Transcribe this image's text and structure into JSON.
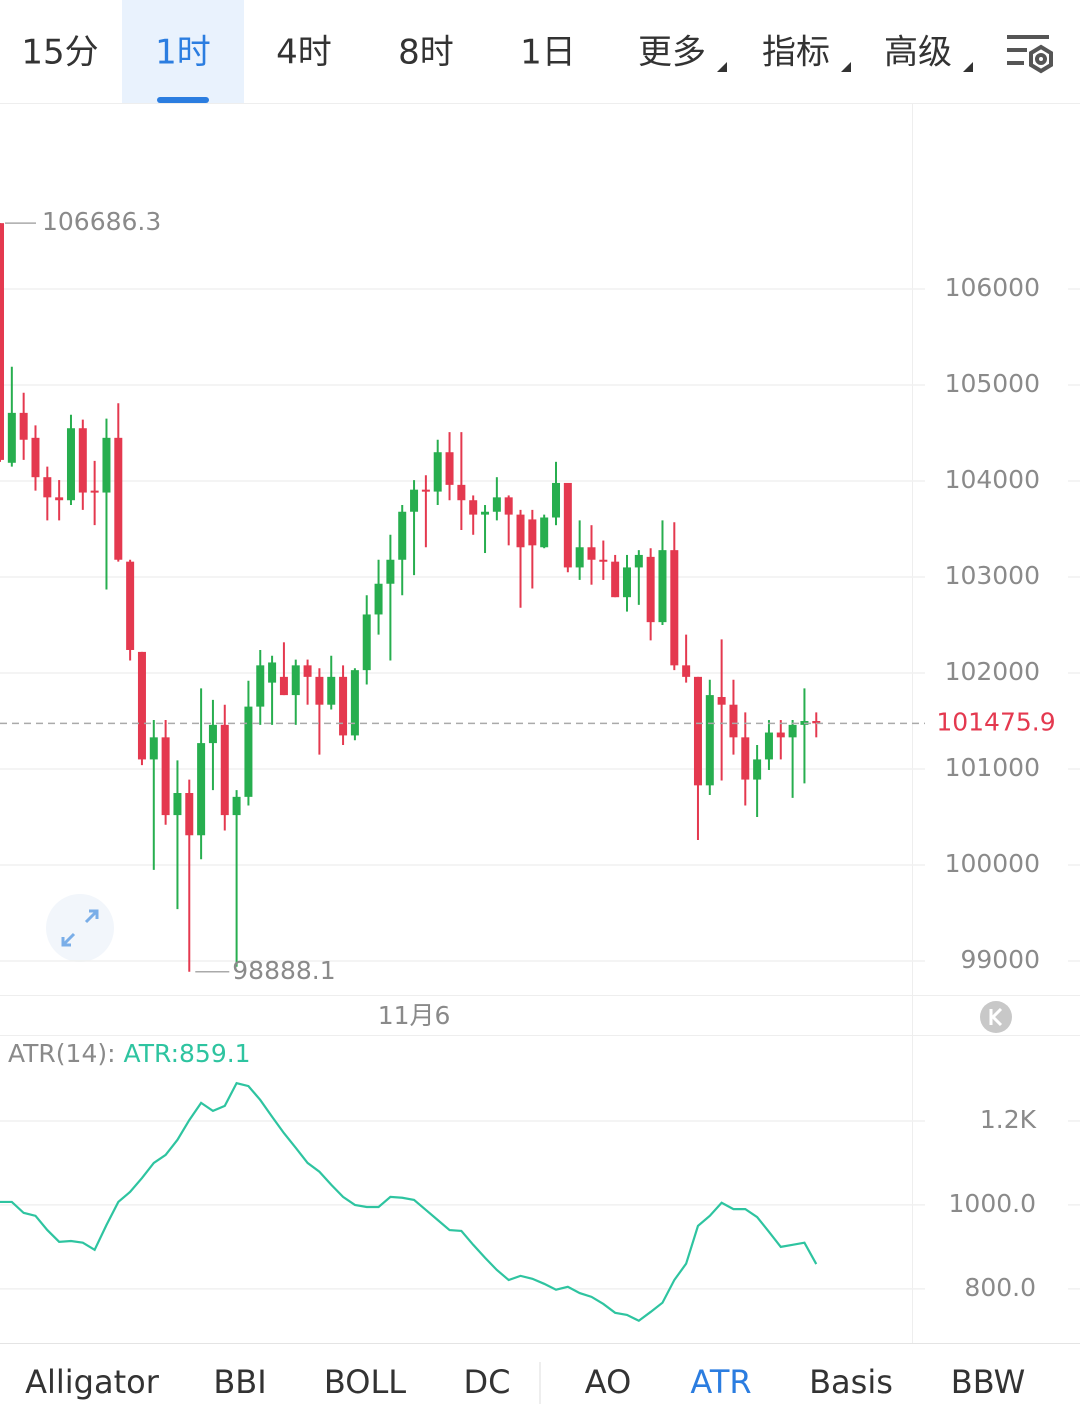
{
  "tabs": {
    "items": [
      "15分",
      "1时",
      "4时",
      "8时",
      "1日",
      "更多",
      "指标",
      "高级"
    ],
    "active": 1
  },
  "chart_data": [
    {
      "type": "candlestick",
      "categories": [
        null,
        null,
        null,
        null,
        null,
        null,
        null,
        null,
        null,
        null,
        null,
        null,
        null,
        null,
        null,
        null,
        null,
        null,
        null,
        null,
        null,
        null,
        null,
        null,
        null,
        null,
        null,
        null,
        null,
        null,
        null,
        null,
        null,
        null,
        null,
        "11月6",
        null,
        null,
        null,
        null,
        null,
        null,
        null,
        null,
        null,
        null,
        null,
        null,
        null,
        null,
        null,
        null,
        null,
        null,
        null,
        null,
        null,
        null,
        null,
        null,
        null,
        null,
        null,
        null,
        null,
        null,
        null,
        null,
        null,
        null
      ],
      "open": [
        106686.3,
        104190,
        104710,
        104450,
        104040,
        103830,
        103800,
        104550,
        103900,
        103880,
        104450,
        103160,
        102220,
        101100,
        101330,
        100520,
        100750,
        100310,
        101270,
        101460,
        100520,
        100710,
        101650,
        101900,
        101960,
        101770,
        102080,
        101960,
        101670,
        101960,
        101350,
        102030,
        102610,
        102930,
        103180,
        103680,
        103910,
        103890,
        104300,
        103960,
        103800,
        103650,
        103680,
        103830,
        103650,
        103600,
        103310,
        103620,
        103980,
        103100,
        103310,
        103180,
        103160,
        102790,
        103100,
        103210,
        102530,
        103280,
        102080,
        101960,
        100830,
        101750,
        101670,
        101330,
        100890,
        101100,
        101380,
        101330,
        101460,
        101500
      ],
      "high": [
        106686.3,
        105190,
        104920,
        104580,
        104150,
        104010,
        104690,
        104640,
        104210,
        104650,
        104810,
        103180,
        102220,
        101510,
        101510,
        101090,
        100890,
        101840,
        101720,
        101670,
        100780,
        101920,
        102240,
        102180,
        102320,
        102140,
        102140,
        102050,
        102180,
        102080,
        102050,
        102810,
        103180,
        103440,
        103750,
        104010,
        104060,
        104430,
        104510,
        104510,
        103850,
        103750,
        104040,
        103850,
        103700,
        103700,
        103650,
        104200,
        103980,
        103590,
        103540,
        103380,
        103230,
        103230,
        103280,
        103300,
        103590,
        103570,
        102400,
        101960,
        101930,
        102350,
        101930,
        101590,
        101250,
        101510,
        101510,
        101510,
        101840,
        101590
      ],
      "low": [
        104200,
        104150,
        104220,
        103900,
        103590,
        103590,
        103750,
        103700,
        103540,
        102870,
        103160,
        102130,
        101040,
        99950,
        100420,
        99540,
        98888.1,
        100060,
        100780,
        100360,
        98940,
        100620,
        101460,
        101460,
        101770,
        101460,
        101670,
        101150,
        101620,
        101250,
        101300,
        101880,
        102400,
        102130,
        102810,
        103020,
        103310,
        103750,
        103800,
        103490,
        103440,
        103250,
        103590,
        103330,
        102680,
        102880,
        103300,
        103540,
        103050,
        102970,
        102920,
        102970,
        102790,
        102640,
        102710,
        102340,
        102500,
        102030,
        101900,
        100260,
        100730,
        100880,
        101150,
        100620,
        100500,
        100990,
        101100,
        100700,
        100850,
        101330
      ],
      "close": [
        104220,
        104710,
        104430,
        104040,
        103830,
        103800,
        104550,
        103880,
        103880,
        104450,
        103180,
        102240,
        101100,
        101330,
        100520,
        100750,
        100310,
        101270,
        101460,
        100520,
        100710,
        101650,
        102080,
        102110,
        101770,
        102080,
        101960,
        101670,
        101960,
        101350,
        102030,
        102610,
        102930,
        103180,
        103680,
        103910,
        103890,
        104300,
        103960,
        103800,
        103650,
        103680,
        103830,
        103650,
        103310,
        103330,
        103620,
        103980,
        103100,
        103310,
        103180,
        103160,
        102790,
        103100,
        103230,
        102530,
        103280,
        102080,
        101960,
        100830,
        101770,
        101670,
        101330,
        100890,
        101100,
        101380,
        101330,
        101460,
        101500,
        101475.9
      ],
      "up_color": "#27ae4f",
      "down_color": "#e4394f",
      "max_label": 106686.3,
      "min_label": 98888.1,
      "last_price": 101475.9,
      "last_price_color": "#e4394f",
      "ylim": [
        98646,
        107917
      ],
      "yticks": [
        99000,
        100000,
        101000,
        102000,
        103000,
        104000,
        105000,
        106000
      ],
      "grid": true
    },
    {
      "type": "line",
      "title": "ATR(14):",
      "label": "ATR:859.1",
      "color": "#2ec4a0",
      "values": [
        1007,
        1007,
        981,
        974,
        940,
        912,
        914,
        910,
        893,
        952,
        1007,
        1031,
        1064,
        1100,
        1119,
        1155,
        1202,
        1243,
        1224,
        1236,
        1290,
        1283,
        1250,
        1210,
        1171,
        1136,
        1100,
        1079,
        1048,
        1019,
        1000,
        995,
        995,
        1019,
        1017,
        1012,
        988,
        964,
        940,
        938,
        905,
        874,
        845,
        821,
        831,
        824,
        812,
        798,
        805,
        790,
        781,
        764,
        743,
        738,
        724,
        745,
        767,
        821,
        860,
        950,
        974,
        1005,
        990,
        990,
        971,
        936,
        900,
        905,
        910,
        859.1
      ],
      "ylim": [
        671,
        1400
      ],
      "yticks": [
        {
          "value": 1200,
          "label": "1.2K"
        },
        {
          "value": 1000,
          "label": "1000.0"
        },
        {
          "value": 800,
          "label": "800.0"
        }
      ],
      "grid": true
    }
  ],
  "indicator_tabs": {
    "items": [
      "Alligator",
      "BBI",
      "BOLL",
      "DC",
      "AO",
      "ATR",
      "Basis",
      "BBW"
    ],
    "active": 5
  }
}
